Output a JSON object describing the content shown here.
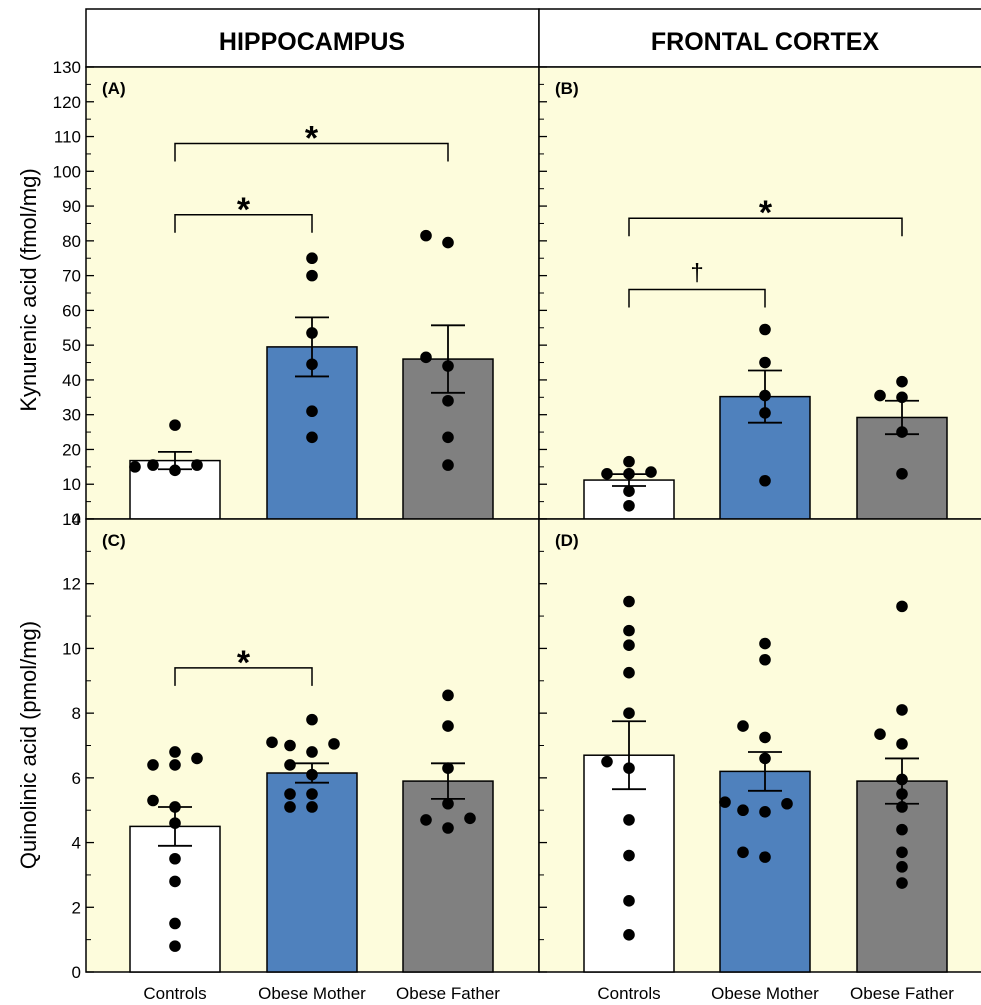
{
  "headers": [
    "HIPPOCAMPUS",
    "FRONTAL CORTEX"
  ],
  "colors": {
    "panel_bg": "#fdfcdc",
    "controls": "#ffffff",
    "obese_mother": "#4f81bd",
    "obese_father": "#808080",
    "dots": "#000000"
  },
  "chart_data": [
    {
      "type": "bar",
      "panel": "(A)",
      "ylabel": "Kynurenic acid (fmol/mg)",
      "ylim": [
        0,
        130
      ],
      "yticks": [
        0,
        10,
        20,
        30,
        40,
        50,
        60,
        70,
        80,
        90,
        100,
        110,
        120,
        130
      ],
      "categories": [
        "Controls",
        "Obese Mother",
        "Obese Father"
      ],
      "values": [
        16.8,
        49.5,
        46
      ],
      "sem": [
        2.5,
        8.5,
        9.7
      ],
      "points": [
        [
          14,
          15.5,
          15.5,
          15,
          27
        ],
        [
          23.5,
          31,
          44.5,
          53.5,
          70,
          75
        ],
        [
          15.5,
          23.5,
          34,
          44,
          46.5,
          79.5,
          81.5
        ]
      ],
      "annotations": [
        {
          "from": 0,
          "to": 2,
          "label": "*",
          "y": 108
        },
        {
          "from": 0,
          "to": 1,
          "label": "*",
          "y": 87.5
        }
      ]
    },
    {
      "type": "bar",
      "panel": "(B)",
      "ylim": [
        0,
        130
      ],
      "yticks": [
        0,
        10,
        20,
        30,
        40,
        50,
        60,
        70,
        80,
        90,
        100,
        110,
        120,
        130
      ],
      "categories": [
        "Controls",
        "Obese Mother",
        "Obese Father"
      ],
      "values": [
        11.2,
        35.2,
        29.2
      ],
      "sem": [
        1.7,
        7.5,
        4.8
      ],
      "points": [
        [
          3.8,
          8,
          13,
          13,
          13.5,
          16.5
        ],
        [
          11,
          30.5,
          35.5,
          45,
          54.5
        ],
        [
          13,
          25,
          35,
          35.5,
          39.5
        ]
      ],
      "annotations": [
        {
          "from": 0,
          "to": 2,
          "label": "*",
          "y": 86.5
        },
        {
          "from": 0,
          "to": 1,
          "label": "†",
          "y": 66
        }
      ]
    },
    {
      "type": "bar",
      "panel": "(C)",
      "ylabel": "Quinolinic acid (pmol/mg)",
      "ylim": [
        0,
        14
      ],
      "yticks": [
        0,
        2,
        4,
        6,
        8,
        10,
        12,
        14
      ],
      "categories": [
        "Controls",
        "Obese Mother",
        "Obese Father"
      ],
      "values": [
        4.5,
        6.15,
        5.9
      ],
      "sem": [
        0.6,
        0.3,
        0.55
      ],
      "points": [
        [
          0.8,
          1.5,
          2.8,
          3.5,
          4.6,
          5.1,
          5.3,
          6.4,
          6.4,
          6.6,
          6.8
        ],
        [
          5.1,
          5.1,
          5.5,
          5.5,
          6.1,
          6.4,
          6.8,
          7.0,
          7.05,
          7.1,
          7.8
        ],
        [
          4.45,
          4.7,
          4.75,
          5.2,
          6.3,
          7.6,
          8.55
        ]
      ],
      "annotations": [
        {
          "from": 0,
          "to": 1,
          "label": "*",
          "y": 9.4
        }
      ]
    },
    {
      "type": "bar",
      "panel": "(D)",
      "ylim": [
        0,
        14
      ],
      "yticks": [
        0,
        2,
        4,
        6,
        8,
        10,
        12,
        14
      ],
      "categories": [
        "Controls",
        "Obese Mother",
        "Obese Father"
      ],
      "values": [
        6.7,
        6.2,
        5.9
      ],
      "sem": [
        1.05,
        0.6,
        0.7
      ],
      "points": [
        [
          1.15,
          2.2,
          3.6,
          4.7,
          6.3,
          6.5,
          8.0,
          9.25,
          10.1,
          10.55,
          11.45
        ],
        [
          3.55,
          3.7,
          4.95,
          5.0,
          5.2,
          5.25,
          6.6,
          7.25,
          7.6,
          9.65,
          10.15
        ],
        [
          2.75,
          3.25,
          3.7,
          4.4,
          5.1,
          5.5,
          5.95,
          7.05,
          7.35,
          8.1,
          11.3
        ]
      ],
      "annotations": []
    }
  ]
}
